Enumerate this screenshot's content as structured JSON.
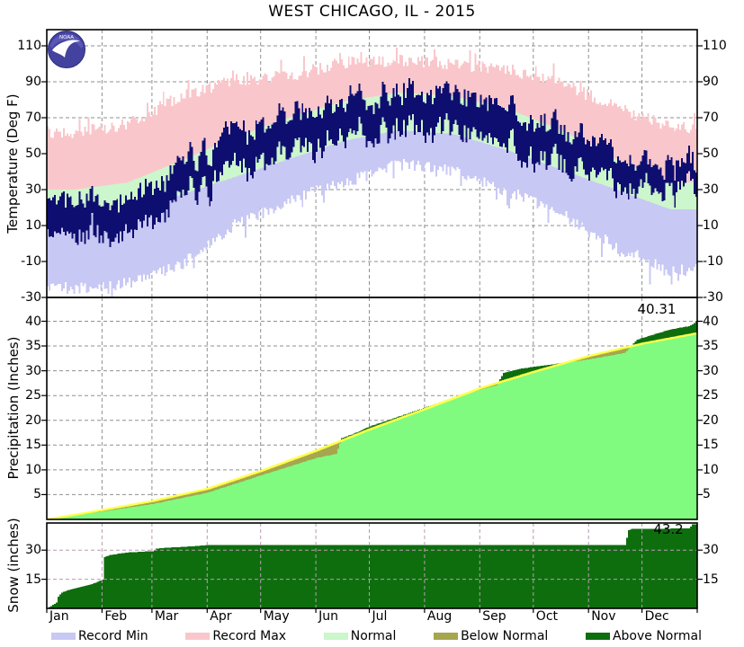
{
  "title": "WEST CHICAGO, IL - 2015",
  "logo": {
    "text": "NOAA"
  },
  "months": [
    "Jan",
    "Feb",
    "Mar",
    "Apr",
    "May",
    "Jun",
    "Jul",
    "Aug",
    "Sep",
    "Oct",
    "Nov",
    "Dec"
  ],
  "month_start_days": [
    0,
    31,
    59,
    90,
    120,
    151,
    181,
    212,
    243,
    273,
    304,
    334
  ],
  "days_in_year": 365,
  "colors": {
    "record_min": "#c8c8f4",
    "record_max": "#f9c7cb",
    "normal_band": "#ccf6cb",
    "below_normal": "#a6a64f",
    "above_normal": "#0e6e0e",
    "observed_temp": "#0e0e70",
    "precip_observed": "#80fb80",
    "normal_line": "#ffff4a",
    "grid": "#8f8f8f",
    "snow_grid_over": "#b89bb0",
    "frame": "#000000"
  },
  "legend": [
    {
      "label": "Record Min",
      "color": "#c8c8f4"
    },
    {
      "label": "Record Max",
      "color": "#f9c7cb"
    },
    {
      "label": "Normal",
      "color": "#ccf6cb"
    },
    {
      "label": "Below Normal",
      "color": "#a6a64f"
    },
    {
      "label": "Above Normal",
      "color": "#0e6e0e"
    }
  ],
  "chart_data": [
    {
      "type": "area",
      "name": "temperature",
      "axis_label": "Temperature (Deg F)",
      "ylim": [
        -30,
        119
      ],
      "yticks": [
        110,
        90,
        70,
        50,
        30,
        10,
        -10,
        -30
      ],
      "grid_yticks": [
        110,
        90,
        70,
        50,
        30,
        10,
        -10
      ],
      "series": {
        "record_high": [
          62,
          66,
          82,
          91,
          93,
          101,
          102,
          100,
          97,
          89,
          76,
          65
        ],
        "record_low": [
          -25,
          -22,
          -12,
          10,
          24,
          34,
          44,
          41,
          29,
          16,
          -2,
          -15
        ],
        "normal_high": [
          30,
          34,
          46,
          59,
          70,
          79,
          84,
          82,
          75,
          63,
          47,
          34
        ],
        "normal_low": [
          15,
          18,
          27,
          37,
          47,
          57,
          63,
          61,
          52,
          41,
          30,
          19
        ],
        "observed_high": [
          27,
          20,
          45,
          60,
          70,
          80,
          84,
          83,
          78,
          63,
          48,
          45
        ],
        "observed_low": [
          8,
          1,
          27,
          39,
          50,
          60,
          64,
          63,
          56,
          43,
          33,
          31
        ]
      },
      "noise": {
        "seed": 20150101,
        "record_amp": 3.5,
        "observed_amp": 16
      }
    },
    {
      "type": "cumulative-area",
      "name": "precipitation",
      "axis_label": "Precipitation (Inches)",
      "ylim": [
        0,
        44.8
      ],
      "yticks": [
        40,
        35,
        30,
        25,
        20,
        15,
        10,
        5
      ],
      "annotation": "40.31",
      "final_value": 40.31,
      "normal_final": 37.6,
      "normal_anchors": [
        [
          0,
          0
        ],
        [
          31,
          1.9
        ],
        [
          59,
          3.7
        ],
        [
          90,
          6.2
        ],
        [
          120,
          9.8
        ],
        [
          151,
          13.9
        ],
        [
          181,
          18.2
        ],
        [
          212,
          22.3
        ],
        [
          243,
          26.5
        ],
        [
          273,
          29.8
        ],
        [
          304,
          33.0
        ],
        [
          334,
          35.5
        ],
        [
          365,
          37.6
        ]
      ],
      "observed_anchors": [
        [
          0,
          0
        ],
        [
          2,
          0.3
        ],
        [
          6,
          0.5
        ],
        [
          12,
          0.6
        ],
        [
          31,
          1.6
        ],
        [
          59,
          3.1
        ],
        [
          90,
          5.4
        ],
        [
          120,
          8.9
        ],
        [
          151,
          12.4
        ],
        [
          162,
          13.2
        ],
        [
          165,
          16.4
        ],
        [
          172,
          17.3
        ],
        [
          181,
          18.8
        ],
        [
          196,
          20.6
        ],
        [
          212,
          22.6
        ],
        [
          227,
          24.4
        ],
        [
          243,
          26.2
        ],
        [
          252,
          27.0
        ],
        [
          256,
          29.6
        ],
        [
          265,
          30.4
        ],
        [
          273,
          30.8
        ],
        [
          304,
          32.3
        ],
        [
          324,
          33.6
        ],
        [
          331,
          36.3
        ],
        [
          340,
          37.3
        ],
        [
          349,
          38.3
        ],
        [
          360,
          39.0
        ],
        [
          363,
          39.6
        ],
        [
          365,
          40.31
        ]
      ]
    },
    {
      "type": "cumulative-area",
      "name": "snow",
      "axis_label": "Snow (inches)",
      "ylim": [
        0,
        44
      ],
      "yticks": [
        30,
        15
      ],
      "annotation": "43.2",
      "final_value": 43.2,
      "observed_anchors": [
        [
          0,
          0.3
        ],
        [
          2,
          1.2
        ],
        [
          5,
          3.0
        ],
        [
          6,
          6.0
        ],
        [
          8,
          8.2
        ],
        [
          12,
          9.5
        ],
        [
          18,
          11.0
        ],
        [
          25,
          12.5
        ],
        [
          31,
          14.8
        ],
        [
          32,
          26.5
        ],
        [
          35,
          27.5
        ],
        [
          45,
          28.8
        ],
        [
          59,
          29.5
        ],
        [
          61,
          30.8
        ],
        [
          68,
          31.3
        ],
        [
          82,
          32.0
        ],
        [
          90,
          32.7
        ],
        [
          324,
          32.7
        ],
        [
          326,
          40.2
        ],
        [
          328,
          40.9
        ],
        [
          360,
          41.2
        ],
        [
          362,
          43.2
        ],
        [
          365,
          43.2
        ]
      ]
    }
  ]
}
